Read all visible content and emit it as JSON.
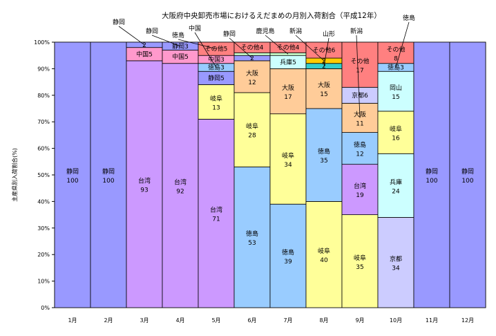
{
  "colors": {
    "静岡": "#9999ff",
    "台湾": "#cc99ff",
    "中国": "#ff99cc",
    "徳島": "#99ccff",
    "岐阜": "#ffff99",
    "大阪": "#ffcc99",
    "京都": "#ccccff",
    "兵庫": "#ccffff",
    "岡山": "#ccffff",
    "鹿児島": "#ccffcc",
    "新潟": "#ffcc00",
    "山形": "#33cccc",
    "その他": "#ff8080"
  },
  "chart_data": {
    "type": "bar",
    "stacked": true,
    "title": "大阪府中央卸売市場におけるえだまめの月別入荷割合（平成12年）",
    "xlabel": "",
    "ylabel": "主産県別入荷割合(%)",
    "ylim": [
      0,
      100
    ],
    "yticks": [
      "0%",
      "10%",
      "20%",
      "30%",
      "40%",
      "50%",
      "60%",
      "70%",
      "80%",
      "90%",
      "100%"
    ],
    "categories": [
      "1月",
      "2月",
      "3月",
      "4月",
      "5月",
      "6月",
      "7月",
      "8月",
      "9月",
      "10月",
      "11月",
      "12月"
    ],
    "stacks": [
      [
        {
          "name": "静岡",
          "value": 100
        }
      ],
      [
        {
          "name": "静岡",
          "value": 100
        }
      ],
      [
        {
          "name": "台湾",
          "value": 93
        },
        {
          "name": "中国",
          "value": 5
        },
        {
          "name": "静岡",
          "value": 2
        }
      ],
      [
        {
          "name": "台湾",
          "value": 92
        },
        {
          "name": "中国",
          "value": 5
        },
        {
          "name": "静岡",
          "value": 3
        }
      ],
      [
        {
          "name": "台湾",
          "value": 71
        },
        {
          "name": "岐阜",
          "value": 13
        },
        {
          "name": "静岡",
          "value": 5
        },
        {
          "name": "徳島",
          "value": 3
        },
        {
          "name": "中国",
          "value": 3
        },
        {
          "name": "その他",
          "value": 5
        }
      ],
      [
        {
          "name": "徳島",
          "value": 53
        },
        {
          "name": "岐阜",
          "value": 28
        },
        {
          "name": "大阪",
          "value": 12
        },
        {
          "name": "静岡",
          "value": 2
        },
        {
          "name": "鹿児島",
          "value": 1
        },
        {
          "name": "その他",
          "value": 4
        }
      ],
      [
        {
          "name": "徳島",
          "value": 39
        },
        {
          "name": "岐阜",
          "value": 34
        },
        {
          "name": "大阪",
          "value": 17
        },
        {
          "name": "兵庫",
          "value": 5
        },
        {
          "name": "鹿児島",
          "value": 1
        },
        {
          "name": "その他",
          "value": 4
        }
      ],
      [
        {
          "name": "岐阜",
          "value": 40
        },
        {
          "name": "徳島",
          "value": 35
        },
        {
          "name": "大阪",
          "value": 15
        },
        {
          "name": "山形",
          "value": 2
        },
        {
          "name": "新潟",
          "value": 2
        },
        {
          "name": "その他",
          "value": 6
        }
      ],
      [
        {
          "name": "岐阜",
          "value": 35
        },
        {
          "name": "台湾",
          "value": 19
        },
        {
          "name": "徳島",
          "value": 12
        },
        {
          "name": "大阪",
          "value": 11
        },
        {
          "name": "京都",
          "value": 6
        },
        {
          "name": "その他",
          "value": 17
        }
      ],
      [
        {
          "name": "京都",
          "value": 34
        },
        {
          "name": "兵庫",
          "value": 24
        },
        {
          "name": "岐阜",
          "value": 16
        },
        {
          "name": "岡山",
          "value": 15
        },
        {
          "name": "徳島",
          "value": 3
        },
        {
          "name": "その他",
          "value": 8
        }
      ],
      [
        {
          "name": "静岡",
          "value": 100
        }
      ],
      [
        {
          "name": "静岡",
          "value": 100
        }
      ]
    ],
    "annotations": [
      "静岡",
      "静岡",
      "徳島",
      "中国",
      "静岡",
      "鹿児島",
      "新潟",
      "山形",
      "新潟",
      "徳島"
    ]
  }
}
